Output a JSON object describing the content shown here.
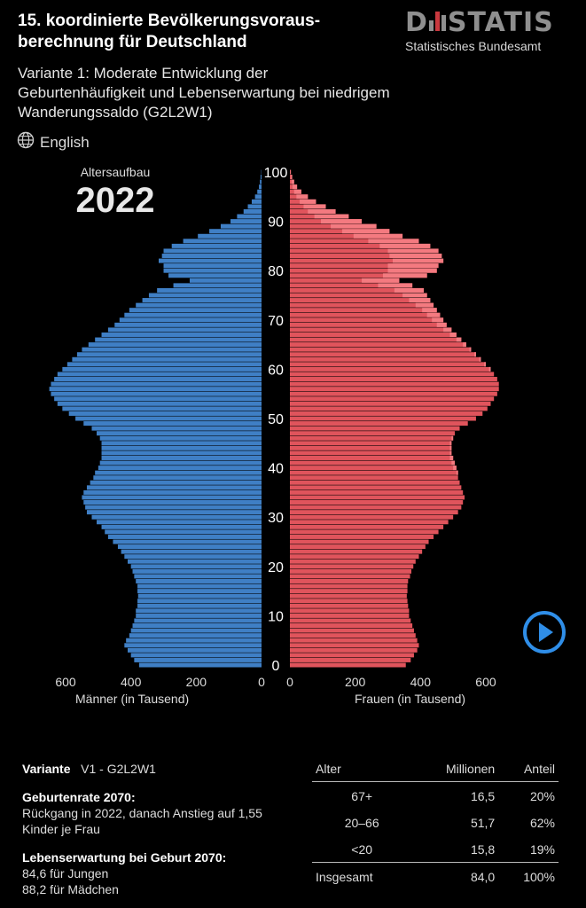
{
  "header": {
    "title": "15. koordinierte Bevölkerungsvoraus-berechnung für Deutschland",
    "subtitle": "Variante 1: Moderate Entwicklung der Geburtenhäufigkeit und Lebenserwartung bei niedrigem Wanderungssaldo (G2L2W1)",
    "language_link": "English",
    "brand_logo": "DSTATIS",
    "brand_sub": "Statistisches Bundesamt"
  },
  "pyramid": {
    "caption": "Altersaufbau",
    "year": "2022",
    "colors": {
      "male": "#3f7fc5",
      "female": "#e0545c",
      "female_excess": "#f47a80"
    }
  },
  "chart_data": {
    "type": "bar",
    "orientation": "horizontal-population-pyramid",
    "ages_from": 0,
    "ages_to": 100,
    "age_ticks": [
      "0",
      "10",
      "20",
      "30",
      "40",
      "50",
      "60",
      "70",
      "80",
      "90",
      "100"
    ],
    "left_axis_ticks": [
      "600",
      "400",
      "200",
      "0"
    ],
    "right_axis_ticks": [
      "0",
      "200",
      "400",
      "600"
    ],
    "xlabel_left": "Männer (in Tausend)",
    "xlabel_right": "Frauen (in Tausend)",
    "xlim": [
      0,
      650
    ],
    "series": [
      {
        "name": "Männer (in Tausend)",
        "values": [
          375,
          390,
          400,
          410,
          420,
          415,
          405,
          400,
          395,
          390,
          385,
          385,
          380,
          380,
          378,
          380,
          380,
          385,
          390,
          395,
          400,
          410,
          420,
          430,
          440,
          455,
          470,
          480,
          490,
          505,
          520,
          535,
          540,
          545,
          550,
          545,
          535,
          525,
          515,
          510,
          500,
          495,
          490,
          490,
          490,
          490,
          495,
          505,
          520,
          545,
          570,
          590,
          610,
          625,
          635,
          645,
          650,
          645,
          635,
          625,
          610,
          595,
          580,
          565,
          550,
          530,
          510,
          490,
          470,
          450,
          435,
          420,
          405,
          385,
          365,
          345,
          320,
          270,
          220,
          285,
          300,
          300,
          315,
          305,
          300,
          275,
          240,
          195,
          160,
          125,
          95,
          75,
          55,
          42,
          30,
          20,
          13,
          8,
          5,
          3,
          1
        ]
      },
      {
        "name": "Frauen (in Tausend)",
        "values": [
          355,
          370,
          380,
          390,
          395,
          390,
          385,
          380,
          375,
          370,
          365,
          365,
          362,
          360,
          358,
          360,
          360,
          362,
          368,
          372,
          378,
          385,
          395,
          405,
          415,
          425,
          440,
          455,
          470,
          485,
          500,
          515,
          525,
          530,
          535,
          530,
          525,
          520,
          515,
          515,
          510,
          505,
          500,
          495,
          495,
          495,
          500,
          505,
          520,
          545,
          570,
          590,
          605,
          615,
          625,
          635,
          640,
          640,
          635,
          625,
          615,
          600,
          585,
          570,
          555,
          540,
          525,
          510,
          495,
          480,
          470,
          460,
          450,
          440,
          430,
          420,
          410,
          375,
          335,
          420,
          450,
          455,
          470,
          465,
          455,
          430,
          395,
          345,
          305,
          265,
          220,
          180,
          140,
          110,
          80,
          55,
          35,
          22,
          13,
          7,
          3
        ]
      }
    ]
  },
  "controls": {
    "play_label": "Abspielen"
  },
  "info": {
    "variant_label": "Variante",
    "variant_value": "V1 - G2L2W1",
    "birth_title": "Geburtenrate 2070:",
    "birth_text": "Rückgang in 2022, danach Anstieg auf 1,55 Kinder je Frau",
    "life_title": "Lebenserwartung bei Geburt 2070:",
    "life_boys": "84,6 für Jungen",
    "life_girls": "88,2 für Mädchen"
  },
  "table": {
    "headers": [
      "Alter",
      "Millionen",
      "Anteil"
    ],
    "rows": [
      [
        "67+",
        "16,5",
        "20%"
      ],
      [
        "20–66",
        "51,7",
        "62%"
      ],
      [
        "<20",
        "15,8",
        "19%"
      ]
    ],
    "total": [
      "Insgesamt",
      "84,0",
      "100%"
    ]
  }
}
